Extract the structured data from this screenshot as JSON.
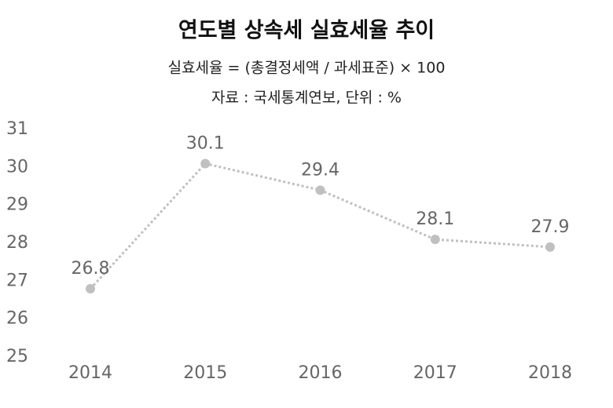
{
  "chart_data": {
    "type": "line",
    "title": "연도별 상속세 실효세율 추이",
    "subtitle": "실효세율 = (총결정세액 / 과세표준) × 100",
    "source": "자료 : 국세통계연보, 단위 : %",
    "categories": [
      "2014",
      "2015",
      "2016",
      "2017",
      "2018"
    ],
    "values": [
      26.8,
      30.1,
      29.4,
      28.1,
      27.9
    ],
    "color": "#c0c0c0",
    "ylim": [
      25,
      31
    ],
    "yticks": [
      25,
      26,
      27,
      28,
      29,
      30,
      31
    ],
    "grid": false
  }
}
